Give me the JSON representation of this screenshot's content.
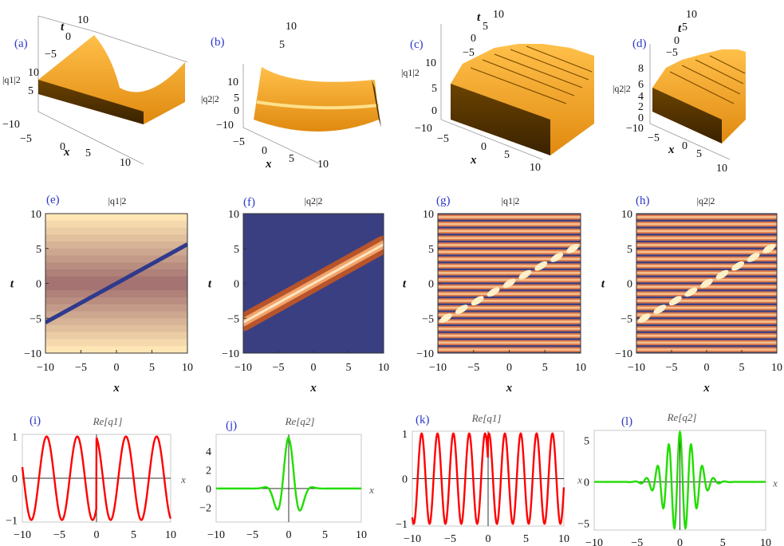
{
  "figure": {
    "panels": [
      {
        "id": "a",
        "label": "(a)",
        "zlabel": "|q1|2",
        "z_ticks": [
          "10",
          "5"
        ],
        "x_ticks": [
          "−10",
          "−5",
          "0",
          "5",
          "10"
        ],
        "t_ticks": [
          "−5",
          "0",
          "5",
          "10"
        ],
        "xlabel": "x",
        "tlabel": "t"
      },
      {
        "id": "b",
        "label": "(b)",
        "zlabel": "|q2|2",
        "z_ticks": [
          "10",
          "5",
          "0"
        ],
        "x_ticks": [
          "−10",
          "−5",
          "0",
          "5",
          "10"
        ],
        "t_ticks": [
          "5",
          "10"
        ],
        "xlabel": "x",
        "tlabel": "t"
      },
      {
        "id": "c",
        "label": "(c)",
        "zlabel": "|q1|2",
        "z_ticks": [
          "10",
          "5",
          "0"
        ],
        "x_ticks": [
          "−10",
          "−5",
          "0",
          "5",
          "10"
        ],
        "t_ticks": [
          "−5",
          "0",
          "5",
          "10"
        ],
        "xlabel": "x",
        "tlabel": "t"
      },
      {
        "id": "d",
        "label": "(d)",
        "zlabel": "|q2|2",
        "z_ticks": [
          "8",
          "6",
          "4",
          "2",
          "0"
        ],
        "x_ticks": [
          "−10",
          "−5",
          "0",
          "5",
          "10"
        ],
        "t_ticks": [
          "−5",
          "0",
          "5",
          "10"
        ],
        "xlabel": "x",
        "tlabel": "t"
      }
    ]
  },
  "chart_data": [
    {
      "panel": "a",
      "type": "surface",
      "title": "",
      "z": "|q1|^2",
      "description_free": true,
      "xlim": [
        -10,
        10
      ],
      "tlim": [
        -10,
        10
      ]
    },
    {
      "panel": "b",
      "type": "surface",
      "title": "",
      "z": "|q2|^2",
      "xlim": [
        -10,
        10
      ],
      "tlim": [
        -10,
        10
      ]
    },
    {
      "panel": "c",
      "type": "surface",
      "title": "",
      "z": "|q1|^2",
      "xlim": [
        -10,
        10
      ],
      "tlim": [
        -10,
        10
      ]
    },
    {
      "panel": "d",
      "type": "surface",
      "title": "",
      "z": "|q2|^2",
      "xlim": [
        -10,
        10
      ],
      "tlim": [
        -10,
        10
      ]
    },
    {
      "panel": "e",
      "label": "(e)",
      "type": "heatmap",
      "title": "|q1|2",
      "xlabel": "x",
      "ylabel": "t",
      "xlim": [
        -10,
        10
      ],
      "ylim": [
        -10,
        10
      ],
      "x_ticks": [
        -10,
        -5,
        0,
        5,
        10
      ],
      "y_ticks": [
        -10,
        -5,
        0,
        5,
        10
      ],
      "trajectory": [
        [
          -10,
          -5.6
        ],
        [
          10,
          5.6
        ]
      ],
      "palette": "light-background-dark-line"
    },
    {
      "panel": "f",
      "label": "(f)",
      "type": "heatmap",
      "title": "|q2|2",
      "xlabel": "x",
      "ylabel": "t",
      "xlim": [
        -10,
        10
      ],
      "ylim": [
        -10,
        10
      ],
      "x_ticks": [
        -10,
        -5,
        0,
        5,
        10
      ],
      "y_ticks": [
        -10,
        -5,
        0,
        5,
        10
      ],
      "trajectory": [
        [
          -10,
          -5.6
        ],
        [
          10,
          5.6
        ]
      ],
      "palette": "dark-background-bright-line"
    },
    {
      "panel": "g",
      "label": "(g)",
      "type": "heatmap",
      "title": "|q1|2",
      "xlabel": "x",
      "ylabel": "t",
      "xlim": [
        -10,
        10
      ],
      "ylim": [
        -10,
        10
      ],
      "x_ticks": [
        -10,
        -5,
        0,
        5,
        10
      ],
      "y_ticks": [
        -10,
        -5,
        0,
        5,
        10
      ],
      "stripes": 20,
      "trajectory": [
        [
          -10,
          -5.6
        ],
        [
          10,
          5.6
        ]
      ]
    },
    {
      "panel": "h",
      "label": "(h)",
      "type": "heatmap",
      "title": "|q2|2",
      "xlabel": "x",
      "ylabel": "t",
      "xlim": [
        -10,
        10
      ],
      "ylim": [
        -10,
        10
      ],
      "x_ticks": [
        -10,
        -5,
        0,
        5,
        10
      ],
      "y_ticks": [
        -10,
        -5,
        0,
        5,
        10
      ],
      "stripes": 20,
      "trajectory": [
        [
          -10,
          -5.6
        ],
        [
          10,
          5.6
        ]
      ]
    },
    {
      "panel": "i",
      "label": "(i)",
      "type": "line",
      "title": "Re[q1]",
      "xlabel": "x",
      "xlim": [
        -10,
        10
      ],
      "ylim": [
        -1.05,
        1.05
      ],
      "x_ticks": [
        "−10",
        "−5",
        "0",
        "5",
        "10"
      ],
      "y_ticks": [
        "1",
        "0",
        "−1"
      ],
      "y_tick_values": [
        1,
        0,
        -1
      ],
      "series": [
        {
          "name": "Re[q1]",
          "color": "#ff0000",
          "formula": "cos(kx + phase jump at 0)",
          "k": 1.5,
          "amplitude": 1
        }
      ]
    },
    {
      "panel": "j",
      "label": "(j)",
      "type": "line",
      "title": "Re[q2]",
      "xlabel": "x",
      "xlim": [
        -10,
        10
      ],
      "ylim": [
        -3.6,
        5.8
      ],
      "x_ticks": [
        "−10",
        "−5",
        "0",
        "5",
        "10"
      ],
      "y_ticks": [
        "4",
        "2",
        "0",
        "−2"
      ],
      "y_tick_values": [
        4,
        2,
        0,
        -2
      ],
      "series": [
        {
          "name": "Re[q2]",
          "color": "#22dd00",
          "formula": "localized wavepacket",
          "peak": 5.5,
          "trough": -3.2
        }
      ]
    },
    {
      "panel": "k",
      "label": "(k)",
      "type": "line",
      "title": "Re[q1]",
      "xlabel": "x",
      "xlim": [
        -10,
        10
      ],
      "ylim": [
        -1.05,
        1.05
      ],
      "x_ticks": [
        "−10",
        "−5",
        "0",
        "5",
        "10"
      ],
      "y_ticks": [
        "1",
        "0",
        "−1"
      ],
      "y_tick_values": [
        1,
        0,
        -1
      ],
      "series": [
        {
          "name": "Re[q1]",
          "color": "#ff0000",
          "k": 3,
          "amplitude": 1
        }
      ]
    },
    {
      "panel": "l",
      "label": "(l)",
      "type": "line",
      "title": "Re[q2]",
      "xlabel": "x",
      "xlim": [
        -10,
        10
      ],
      "ylim": [
        -5.8,
        6.2
      ],
      "x_ticks": [
        "−10",
        "−5",
        "0",
        "5",
        "10"
      ],
      "y_ticks": [
        "5",
        "0",
        "−5"
      ],
      "y_tick_values": [
        5,
        0,
        -5
      ],
      "series": [
        {
          "name": "Re[q2]",
          "color": "#22dd00",
          "peak": 6,
          "trough": -5.5
        }
      ]
    }
  ],
  "colors": {
    "surface": "#f5a524",
    "surface_dark": "#5a3800",
    "line_red": "#ff0000",
    "line_green": "#22dd00",
    "label_blue": "#2a38c8",
    "dark_blue": "#3a3f82"
  }
}
